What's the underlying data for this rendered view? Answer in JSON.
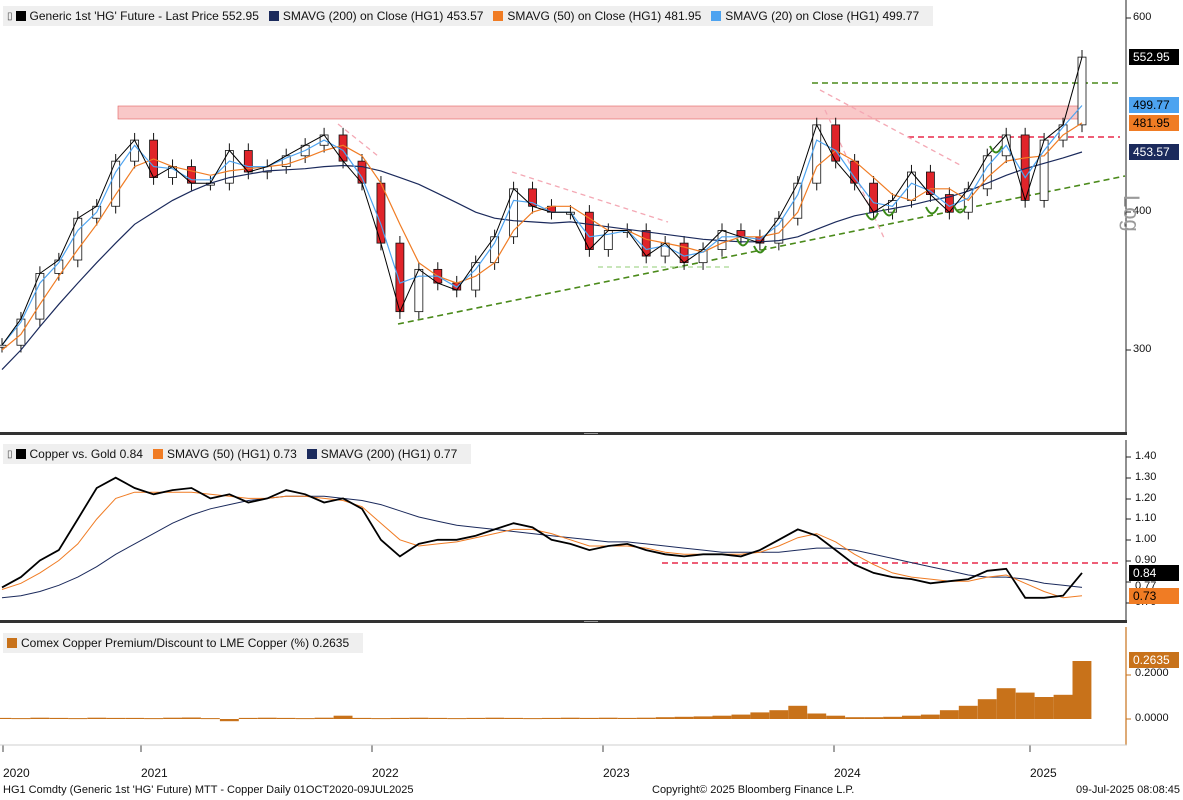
{
  "panels": [
    {
      "legend": [
        {
          "label": "Generic 1st 'HG' Future - Last Price",
          "value": "552.95",
          "color": "#000000"
        },
        {
          "label": "SMAVG (200)  on Close (HG1)",
          "value": "453.57",
          "color": "#1b2a5c"
        },
        {
          "label": "SMAVG (50)  on Close (HG1)",
          "value": "481.95",
          "color": "#f07c24"
        },
        {
          "label": "SMAVG (20)  on Close (HG1)",
          "value": "499.77",
          "color": "#4da3f0"
        }
      ],
      "axis_scale": "Log",
      "ticks": [
        "600",
        "400",
        "300"
      ],
      "tags": [
        {
          "value": "552.95",
          "bg": "#000000",
          "fg": "#ffffff"
        },
        {
          "value": "499.77",
          "bg": "#4da3f0",
          "fg": "#000000"
        },
        {
          "value": "481.95",
          "bg": "#f07c24",
          "fg": "#000000"
        },
        {
          "value": "453.57",
          "bg": "#1b2a5c",
          "fg": "#ffffff"
        }
      ]
    },
    {
      "legend": [
        {
          "label": "Copper vs. Gold",
          "value": "0.84",
          "color": "#000000"
        },
        {
          "label": "SMAVG (50) (HG1)",
          "value": "0.73",
          "color": "#f07c24"
        },
        {
          "label": "SMAVG (200) (HG1)",
          "value": "0.77",
          "color": "#1b2a5c"
        }
      ],
      "ticks": [
        "1.40",
        "1.30",
        "1.20",
        "1.10",
        "1.00",
        "0.90",
        "0.77",
        "0.70"
      ],
      "tags": [
        {
          "value": "0.84",
          "bg": "#000000",
          "fg": "#ffffff"
        },
        {
          "value": "0.73",
          "bg": "#f07c24",
          "fg": "#000000"
        }
      ]
    },
    {
      "legend": [
        {
          "label": "Comex Copper Premium/Discount to LME Copper (%)",
          "value": "0.2635",
          "color": "#c8721a"
        }
      ],
      "ticks": [
        "0.2000",
        "0.0000"
      ],
      "tags": [
        {
          "value": "0.2635",
          "bg": "#c8721a",
          "fg": "#ffffff"
        }
      ]
    }
  ],
  "x_axis_years": [
    "2020",
    "2021",
    "2022",
    "2023",
    "2024",
    "2025"
  ],
  "footer": {
    "left": "HG1 Comdty (Generic 1st 'HG' Future) MTT - Copper  Daily 01OCT2020-09JUL2025",
    "center": "Copyright© 2025 Bloomberg Finance L.P.",
    "right": "09-Jul-2025 08:08:45"
  },
  "chart_data": [
    {
      "type": "line",
      "title": "Generic 1st 'HG' Future - Last Price",
      "yscale": "log",
      "ylim": [
        280,
        620
      ],
      "x": [
        "2020-10",
        "2020-11",
        "2020-12",
        "2021-01",
        "2021-02",
        "2021-03",
        "2021-04",
        "2021-05",
        "2021-06",
        "2021-07",
        "2021-08",
        "2021-09",
        "2021-10",
        "2021-11",
        "2021-12",
        "2022-01",
        "2022-02",
        "2022-03",
        "2022-04",
        "2022-05",
        "2022-06",
        "2022-07",
        "2022-08",
        "2022-09",
        "2022-10",
        "2022-11",
        "2022-12",
        "2023-01",
        "2023-02",
        "2023-03",
        "2023-04",
        "2023-05",
        "2023-06",
        "2023-07",
        "2023-08",
        "2023-09",
        "2023-10",
        "2023-11",
        "2023-12",
        "2024-01",
        "2024-02",
        "2024-03",
        "2024-04",
        "2024-05",
        "2024-06",
        "2024-07",
        "2024-08",
        "2024-09",
        "2024-10",
        "2024-11",
        "2024-12",
        "2025-01",
        "2025-02",
        "2025-03",
        "2025-04",
        "2025-05",
        "2025-06",
        "2025-07"
      ],
      "series": [
        {
          "name": "Generic 1st 'HG' Future - Last Price",
          "values": [
            303,
            320,
            352,
            362,
            395,
            405,
            445,
            465,
            430,
            440,
            425,
            425,
            455,
            435,
            440,
            450,
            460,
            470,
            445,
            425,
            375,
            325,
            355,
            345,
            340,
            360,
            380,
            420,
            405,
            400,
            400,
            370,
            385,
            385,
            365,
            375,
            360,
            370,
            385,
            380,
            375,
            395,
            425,
            480,
            445,
            425,
            400,
            410,
            435,
            415,
            400,
            420,
            450,
            470,
            410,
            465,
            480,
            552.95
          ]
        },
        {
          "name": "SMAVG (200)  on Close (HG1)",
          "values": [
            288,
            300,
            315,
            330,
            345,
            360,
            375,
            390,
            400,
            410,
            418,
            425,
            430,
            433,
            436,
            437,
            438,
            440,
            441,
            440,
            436,
            430,
            424,
            416,
            408,
            400,
            395,
            393,
            392,
            391,
            392,
            390,
            388,
            386,
            384,
            382,
            380,
            378,
            377,
            376,
            376,
            377,
            380,
            386,
            392,
            397,
            400,
            403,
            406,
            410,
            413,
            418,
            425,
            432,
            438,
            443,
            448,
            453.57
          ]
        },
        {
          "name": "SMAVG (50)  on Close (HG1)",
          "values": [
            300,
            310,
            330,
            350,
            370,
            390,
            415,
            440,
            447,
            440,
            436,
            432,
            436,
            438,
            440,
            442,
            448,
            455,
            460,
            450,
            425,
            390,
            360,
            350,
            345,
            350,
            360,
            385,
            400,
            405,
            405,
            395,
            385,
            385,
            378,
            375,
            372,
            368,
            375,
            380,
            380,
            383,
            400,
            440,
            455,
            445,
            430,
            415,
            410,
            420,
            420,
            410,
            430,
            445,
            448,
            450,
            470,
            481.95
          ]
        },
        {
          "name": "SMAVG (20)  on Close (HG1)",
          "values": [
            303,
            318,
            345,
            360,
            385,
            400,
            435,
            460,
            440,
            438,
            428,
            428,
            445,
            440,
            440,
            448,
            455,
            465,
            455,
            430,
            390,
            345,
            350,
            350,
            342,
            355,
            375,
            410,
            408,
            400,
            400,
            380,
            382,
            385,
            370,
            373,
            365,
            368,
            380,
            380,
            378,
            390,
            415,
            465,
            455,
            430,
            408,
            405,
            425,
            418,
            405,
            412,
            440,
            460,
            430,
            455,
            478,
            499.77
          ]
        }
      ]
    },
    {
      "type": "line",
      "title": "Copper vs. Gold",
      "ylim": [
        0.68,
        1.42
      ],
      "x": [
        "2020-10",
        "2020-11",
        "2020-12",
        "2021-01",
        "2021-02",
        "2021-03",
        "2021-04",
        "2021-05",
        "2021-06",
        "2021-07",
        "2021-08",
        "2021-09",
        "2021-10",
        "2021-11",
        "2021-12",
        "2022-01",
        "2022-02",
        "2022-03",
        "2022-04",
        "2022-05",
        "2022-06",
        "2022-07",
        "2022-08",
        "2022-09",
        "2022-10",
        "2022-11",
        "2022-12",
        "2023-01",
        "2023-02",
        "2023-03",
        "2023-04",
        "2023-05",
        "2023-06",
        "2023-07",
        "2023-08",
        "2023-09",
        "2023-10",
        "2023-11",
        "2023-12",
        "2024-01",
        "2024-02",
        "2024-03",
        "2024-04",
        "2024-05",
        "2024-06",
        "2024-07",
        "2024-08",
        "2024-09",
        "2024-10",
        "2024-11",
        "2024-12",
        "2025-01",
        "2025-02",
        "2025-03",
        "2025-04",
        "2025-05",
        "2025-06",
        "2025-07"
      ],
      "series": [
        {
          "name": "Copper vs. Gold",
          "values": [
            0.77,
            0.82,
            0.9,
            0.95,
            1.1,
            1.25,
            1.3,
            1.25,
            1.22,
            1.24,
            1.25,
            1.2,
            1.22,
            1.18,
            1.2,
            1.24,
            1.22,
            1.18,
            1.2,
            1.15,
            1.0,
            0.92,
            0.98,
            1.0,
            1.0,
            1.02,
            1.05,
            1.08,
            1.06,
            1.0,
            0.98,
            0.95,
            0.97,
            0.98,
            0.95,
            0.93,
            0.92,
            0.93,
            0.93,
            0.92,
            0.95,
            1.0,
            1.05,
            1.02,
            0.95,
            0.88,
            0.84,
            0.82,
            0.81,
            0.79,
            0.8,
            0.81,
            0.85,
            0.86,
            0.72,
            0.72,
            0.73,
            0.84
          ]
        },
        {
          "name": "SMAVG (50) (HG1)",
          "values": [
            0.76,
            0.79,
            0.84,
            0.9,
            0.98,
            1.1,
            1.2,
            1.23,
            1.23,
            1.23,
            1.23,
            1.22,
            1.21,
            1.2,
            1.2,
            1.21,
            1.21,
            1.2,
            1.19,
            1.16,
            1.08,
            1.0,
            0.97,
            0.98,
            0.99,
            1.01,
            1.03,
            1.05,
            1.05,
            1.03,
            1.0,
            0.97,
            0.97,
            0.97,
            0.96,
            0.94,
            0.93,
            0.93,
            0.93,
            0.93,
            0.94,
            0.97,
            1.01,
            1.03,
            0.99,
            0.93,
            0.88,
            0.84,
            0.82,
            0.81,
            0.8,
            0.8,
            0.82,
            0.83,
            0.79,
            0.75,
            0.72,
            0.73
          ]
        },
        {
          "name": "SMAVG (200) (HG1)",
          "values": [
            0.72,
            0.73,
            0.75,
            0.78,
            0.82,
            0.87,
            0.93,
            0.98,
            1.03,
            1.08,
            1.12,
            1.15,
            1.17,
            1.19,
            1.2,
            1.21,
            1.21,
            1.21,
            1.2,
            1.19,
            1.17,
            1.14,
            1.11,
            1.09,
            1.07,
            1.06,
            1.05,
            1.04,
            1.03,
            1.02,
            1.01,
            1.0,
            0.99,
            0.99,
            0.98,
            0.97,
            0.96,
            0.95,
            0.94,
            0.94,
            0.94,
            0.94,
            0.95,
            0.96,
            0.96,
            0.95,
            0.93,
            0.91,
            0.89,
            0.87,
            0.85,
            0.83,
            0.82,
            0.82,
            0.81,
            0.79,
            0.78,
            0.77
          ]
        }
      ]
    },
    {
      "type": "bar",
      "title": "Comex Copper Premium/Discount to LME Copper (%)",
      "ylim": [
        -0.07,
        0.33
      ],
      "x": [
        "2020-10",
        "2020-11",
        "2020-12",
        "2021-01",
        "2021-02",
        "2021-03",
        "2021-04",
        "2021-05",
        "2021-06",
        "2021-07",
        "2021-08",
        "2021-09",
        "2021-10",
        "2021-11",
        "2021-12",
        "2022-01",
        "2022-02",
        "2022-03",
        "2022-04",
        "2022-05",
        "2022-06",
        "2022-07",
        "2022-08",
        "2022-09",
        "2022-10",
        "2022-11",
        "2022-12",
        "2023-01",
        "2023-02",
        "2023-03",
        "2023-04",
        "2023-05",
        "2023-06",
        "2023-07",
        "2023-08",
        "2023-09",
        "2023-10",
        "2023-11",
        "2023-12",
        "2024-01",
        "2024-02",
        "2024-03",
        "2024-04",
        "2024-05",
        "2024-06",
        "2024-07",
        "2024-08",
        "2024-09",
        "2024-10",
        "2024-11",
        "2024-12",
        "2025-01",
        "2025-02",
        "2025-03",
        "2025-04",
        "2025-05",
        "2025-06",
        "2025-07"
      ],
      "values": [
        0.005,
        0.004,
        0.006,
        0.005,
        0.004,
        0.006,
        0.005,
        0.005,
        0.004,
        0.006,
        0.007,
        0.004,
        -0.01,
        0.005,
        0.006,
        0.005,
        0.004,
        0.006,
        0.015,
        0.005,
        0.004,
        0.005,
        0.006,
        0.005,
        0.004,
        0.005,
        0.006,
        0.005,
        0.004,
        0.005,
        0.006,
        0.005,
        0.006,
        0.005,
        0.006,
        0.008,
        0.01,
        0.012,
        0.015,
        0.02,
        0.03,
        0.04,
        0.06,
        0.025,
        0.015,
        0.008,
        0.008,
        0.01,
        0.015,
        0.02,
        0.04,
        0.06,
        0.09,
        0.14,
        0.12,
        0.1,
        0.11,
        0.2635
      ]
    }
  ]
}
